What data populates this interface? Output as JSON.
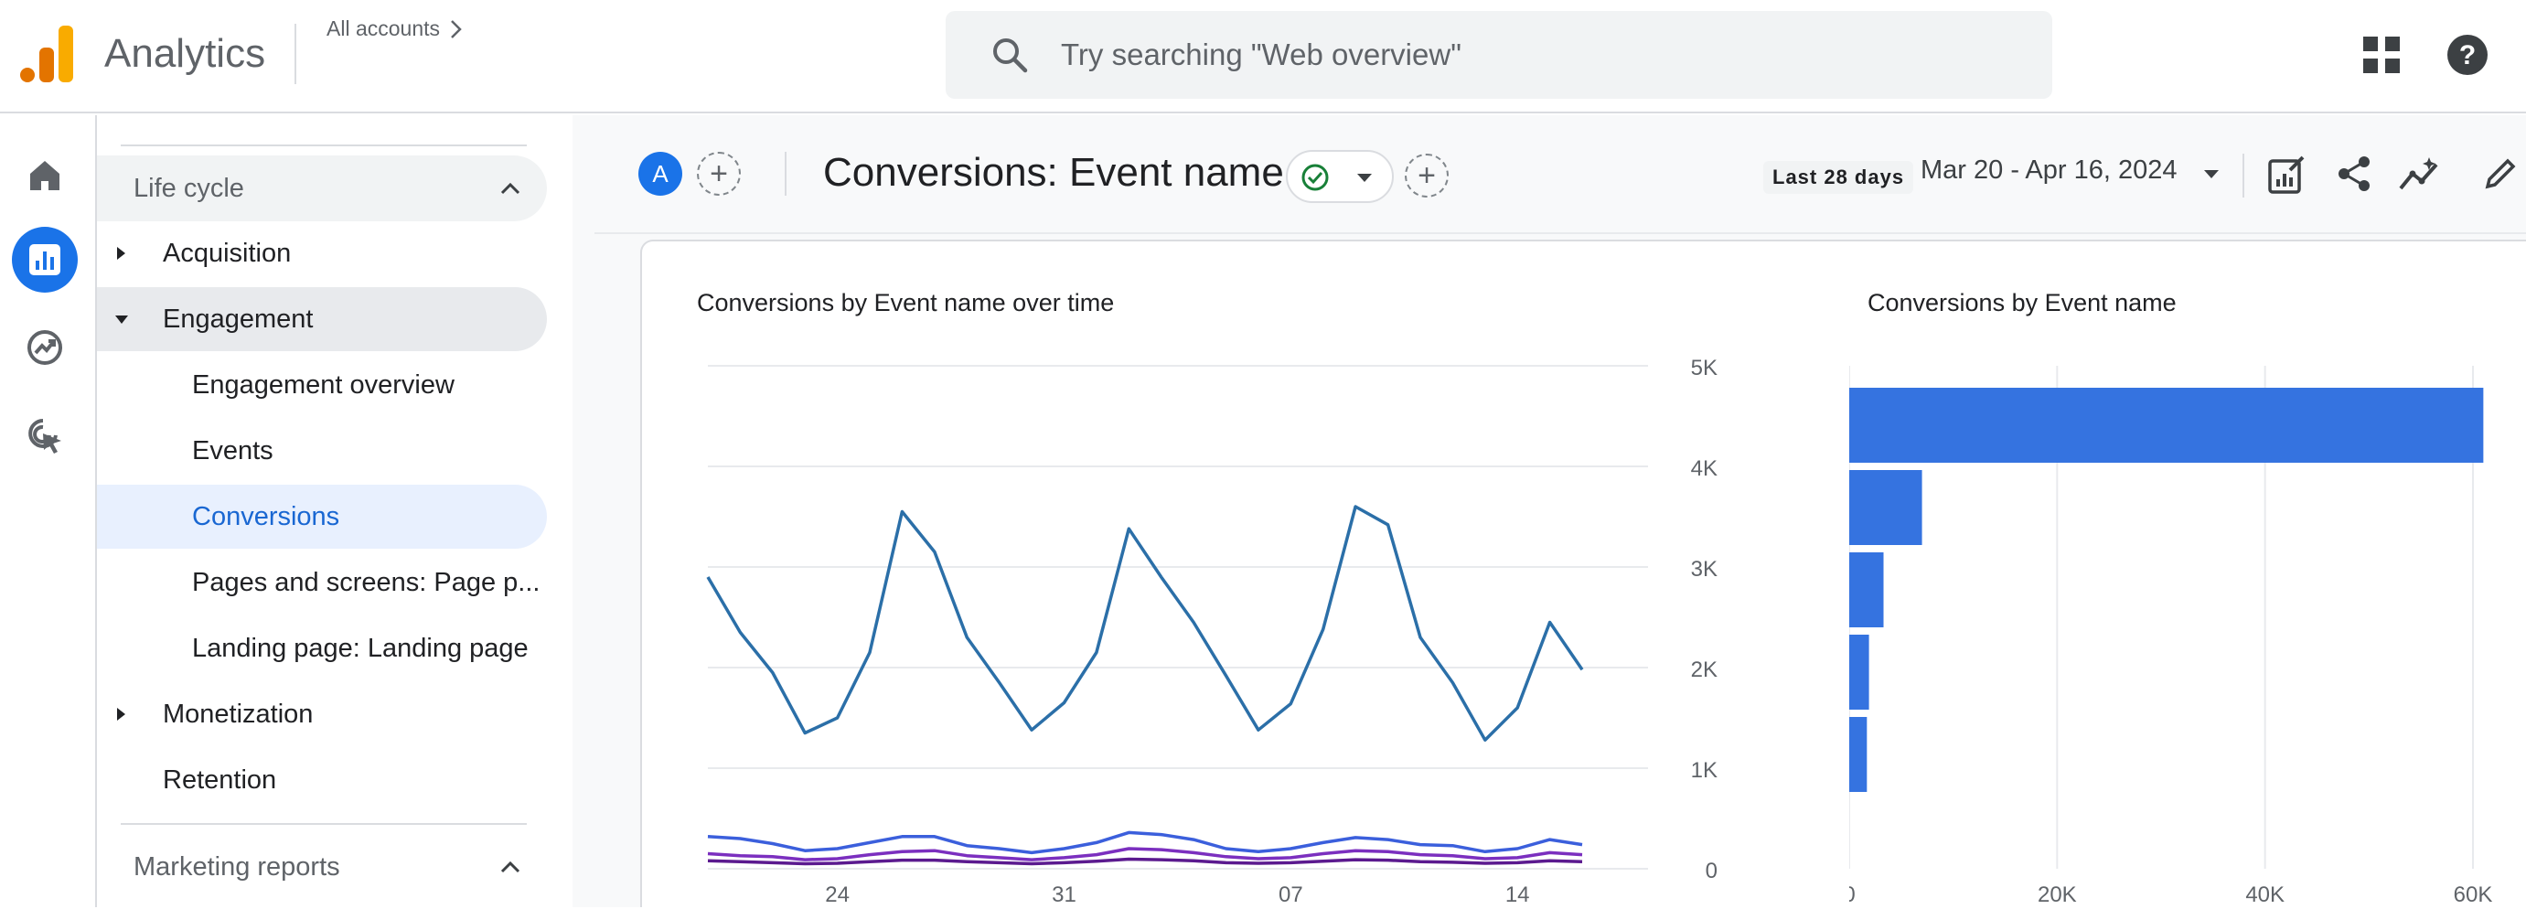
{
  "topbar": {
    "app_title": "Analytics",
    "all_accounts": "All accounts",
    "search_placeholder": "Try searching \"Web overview\"",
    "icons": [
      "apps-grid-icon",
      "help-icon"
    ]
  },
  "rail": {
    "items": [
      {
        "name": "home-icon",
        "active": false
      },
      {
        "name": "reports-icon",
        "active": true
      },
      {
        "name": "explore-icon",
        "active": false
      },
      {
        "name": "advertising-icon",
        "active": false
      }
    ]
  },
  "sidebar": {
    "lifecycle_label": "Life cycle",
    "acquisition": "Acquisition",
    "engagement": "Engagement",
    "engagement_overview": "Engagement overview",
    "events": "Events",
    "conversions": "Conversions",
    "pages_and_screens": "Pages and screens: Page p...",
    "landing_page": "Landing page: Landing page",
    "monetization": "Monetization",
    "retention": "Retention",
    "marketing_label": "Marketing reports"
  },
  "header": {
    "avatar_letter": "A",
    "title": "Conversions: Event name",
    "date_chip": "Last 28 days",
    "date_range": "Mar 20 - Apr 16, 2024"
  },
  "colors": {
    "accent": "#1a73e8",
    "series_1": "#2b6fa8",
    "series_2": "#3b5fdc",
    "series_3": "#7b2fbf",
    "series_4": "#5b1a8f",
    "bar": "#3573e0",
    "status_ok": "#188038"
  },
  "line_chart": {
    "title": "Conversions by Event name over time",
    "y_ticks": [
      "5K",
      "4K",
      "3K",
      "2K",
      "1K",
      "0"
    ],
    "x_ticks": [
      "24",
      "31",
      "07",
      "14"
    ]
  },
  "bar_chart": {
    "title": "Conversions by Event name",
    "x_ticks": [
      "0",
      "20K",
      "40K",
      "60K"
    ]
  },
  "chart_data": [
    {
      "type": "line",
      "title": "Conversions by Event name over time",
      "x": [
        "Mar 20",
        "Mar 21",
        "Mar 22",
        "Mar 23",
        "Mar 24",
        "Mar 25",
        "Mar 26",
        "Mar 27",
        "Mar 28",
        "Mar 29",
        "Mar 30",
        "Mar 31",
        "Apr 01",
        "Apr 02",
        "Apr 03",
        "Apr 04",
        "Apr 05",
        "Apr 06",
        "Apr 07",
        "Apr 08",
        "Apr 09",
        "Apr 10",
        "Apr 11",
        "Apr 12",
        "Apr 13",
        "Apr 14",
        "Apr 15",
        "Apr 16"
      ],
      "ylim": [
        0,
        5000
      ],
      "series": [
        {
          "values": [
            2900,
            2350,
            1950,
            1350,
            1500,
            2150,
            3550,
            3150,
            2300,
            1850,
            1380,
            1650,
            2150,
            3380,
            2900,
            2450,
            1920,
            1380,
            1640,
            2380,
            3600,
            3420,
            2300,
            1850,
            1280,
            1600,
            2450,
            1980
          ]
        },
        {
          "values": [
            320,
            300,
            250,
            180,
            200,
            260,
            320,
            320,
            230,
            200,
            160,
            200,
            260,
            360,
            340,
            290,
            200,
            170,
            200,
            260,
            310,
            290,
            240,
            230,
            170,
            200,
            290,
            240
          ]
        },
        {
          "values": [
            150,
            130,
            120,
            90,
            100,
            140,
            170,
            180,
            130,
            110,
            90,
            110,
            140,
            200,
            190,
            160,
            120,
            100,
            110,
            150,
            180,
            170,
            140,
            130,
            100,
            110,
            160,
            140
          ]
        },
        {
          "values": [
            80,
            70,
            60,
            50,
            55,
            70,
            85,
            85,
            70,
            60,
            50,
            60,
            75,
            95,
            90,
            80,
            60,
            55,
            60,
            75,
            90,
            85,
            70,
            65,
            55,
            60,
            80,
            70
          ]
        }
      ]
    },
    {
      "type": "bar",
      "title": "Conversions by Event name",
      "orientation": "horizontal",
      "xlim": [
        0,
        60000
      ],
      "values": [
        61000,
        7000,
        3300,
        1900,
        1700
      ]
    }
  ]
}
